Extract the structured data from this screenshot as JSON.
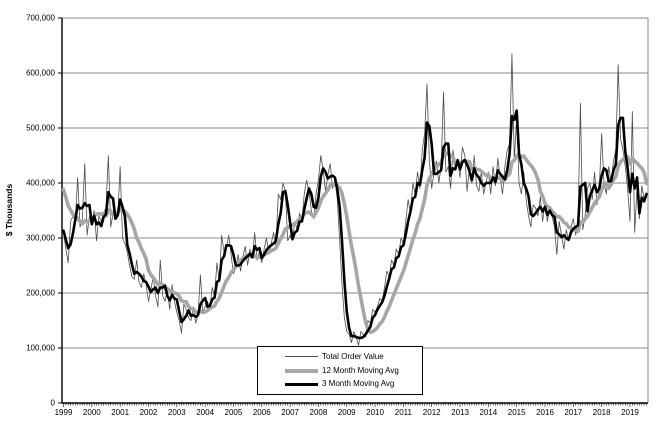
{
  "chart": {
    "y_axis": {
      "title": "$ Thousands",
      "tick_labels": [
        "0",
        "100,000",
        "200,000",
        "300,000",
        "400,000",
        "500,000",
        "600,000",
        "700,000"
      ]
    },
    "x_axis": {
      "tick_labels": [
        "1999",
        "2000",
        "2001",
        "2002",
        "2003",
        "2004",
        "2005",
        "2006",
        "2007",
        "2008",
        "2009",
        "2010",
        "2011",
        "2012",
        "2013",
        "2014",
        "2015",
        "2016",
        "2017",
        "2018",
        "2019"
      ]
    },
    "legend": {
      "entries": [
        {
          "label": "Total Order Value",
          "color": "#4d4d4d",
          "line_weight": 1
        },
        {
          "label": "12 Month Moving Avg",
          "color": "#a6a6a6",
          "line_weight": 4
        },
        {
          "label": "3 Month Moving Avg",
          "color": "#000000",
          "line_weight": 3
        }
      ]
    },
    "colors": {
      "grid": "#898989",
      "axis": "#000000",
      "background": "#ffffff"
    }
  },
  "chart_data": {
    "type": "line",
    "title": "",
    "xlabel": "",
    "ylabel": "$ Thousands",
    "ylim": [
      0,
      700000
    ],
    "y_step": 100000,
    "grid": true,
    "legend_position": "bottom-center-inside",
    "x_start": {
      "year": 1999,
      "month": 1
    },
    "x_frequency": "monthly",
    "series": [
      {
        "name": "Total Order Value",
        "monthly_values": [
          310000,
          280000,
          255000,
          330000,
          340000,
          330000,
          410000,
          320000,
          335000,
          435000,
          305000,
          340000,
          330000,
          350000,
          295000,
          340000,
          330000,
          345000,
          355000,
          450000,
          320000,
          345000,
          340000,
          340000,
          430000,
          300000,
          290000,
          275000,
          250000,
          230000,
          225000,
          260000,
          220000,
          210000,
          235000,
          215000,
          185000,
          205000,
          230000,
          195000,
          175000,
          260000,
          195000,
          185000,
          205000,
          170000,
          215000,
          185000,
          165000,
          150000,
          127000,
          180000,
          170000,
          155000,
          150000,
          175000,
          145000,
          160000,
          233000,
          165000,
          175000,
          185000,
          170000,
          210000,
          195000,
          255000,
          220000,
          305000,
          275000,
          280000,
          305000,
          270000,
          235000,
          245000,
          270000,
          240000,
          265000,
          285000,
          250000,
          280000,
          265000,
          310000,
          260000,
          275000,
          255000,
          280000,
          300000,
          270000,
          290000,
          310000,
          285000,
          380000,
          370000,
          400000,
          385000,
          295000,
          305000,
          295000,
          330000,
          315000,
          345000,
          330000,
          380000,
          405000,
          385000,
          350000,
          335000,
          380000,
          405000,
          450000,
          425000,
          385000,
          415000,
          435000,
          390000,
          405000,
          370000,
          295000,
          215000,
          155000,
          130000,
          125000,
          110000,
          130000,
          120000,
          105000,
          130000,
          125000,
          120000,
          150000,
          145000,
          170000,
          165000,
          175000,
          190000,
          185000,
          210000,
          240000,
          230000,
          260000,
          250000,
          280000,
          270000,
          300000,
          290000,
          330000,
          370000,
          345000,
          400000,
          380000,
          420000,
          390000,
          460000,
          490000,
          580000,
          440000,
          390000,
          420000,
          440000,
          400000,
          430000,
          565000,
          420000,
          430000,
          390000,
          460000,
          425000,
          440000,
          410000,
          465000,
          450000,
          385000,
          430000,
          400000,
          450000,
          395000,
          385000,
          420000,
          380000,
          400000,
          420000,
          380000,
          430000,
          395000,
          445000,
          410000,
          380000,
          430000,
          460000,
          470000,
          635000,
          440000,
          520000,
          400000,
          380000,
          420000,
          370000,
          340000,
          320000,
          360000,
          355000,
          340000,
          375000,
          330000,
          365000,
          330000,
          355000,
          340000,
          320000,
          270000,
          330000,
          305000,
          280000,
          315000,
          295000,
          320000,
          335000,
          305000,
          330000,
          545000,
          315000,
          340000,
          390000,
          400000,
          370000,
          420000,
          360000,
          390000,
          490000,
          400000,
          380000,
          430000,
          400000,
          440000,
          460000,
          615000,
          480000,
          460000,
          430000,
          390000,
          330000,
          530000,
          310000,
          390000,
          335000,
          395000,
          370000,
          375000
        ]
      },
      {
        "name": "12 Month Moving Avg",
        "derived": "trailing 12-month mean of Total Order Value"
      },
      {
        "name": "3 Month Moving Avg",
        "derived": "trailing 3-month mean of Total Order Value"
      }
    ],
    "ma_seed_prior_months_1998": [
      430000,
      450000,
      440000,
      420000,
      430000,
      410000,
      415000,
      400000,
      380000,
      370000,
      330000,
      300000
    ]
  }
}
